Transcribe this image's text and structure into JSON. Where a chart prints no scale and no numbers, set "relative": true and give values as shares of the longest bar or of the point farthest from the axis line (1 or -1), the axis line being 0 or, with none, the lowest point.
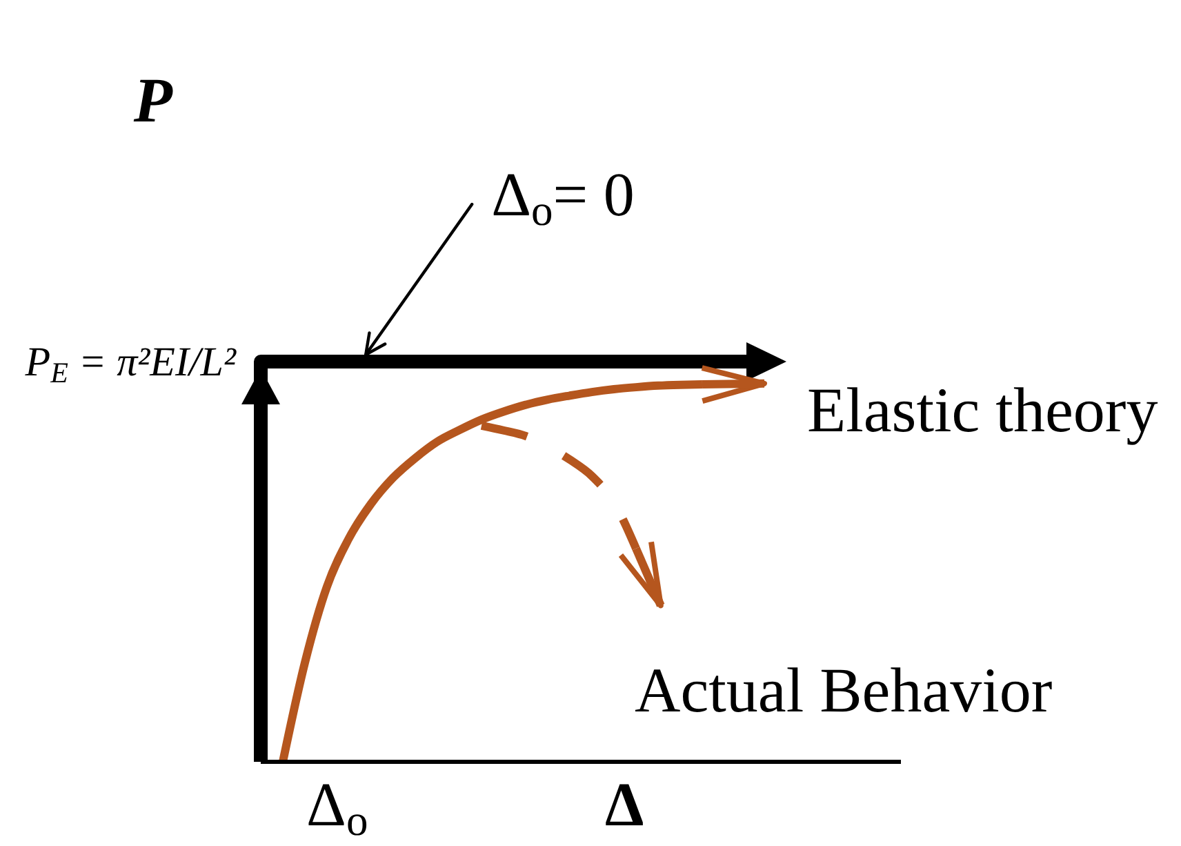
{
  "chart_data": {
    "type": "line",
    "relative": true,
    "xlabel": "Δ",
    "ylabel": "P",
    "categories": [
      null,
      null,
      null,
      null,
      null,
      null,
      null,
      null,
      null,
      null,
      null,
      null,
      null,
      null,
      null,
      null,
      null,
      null,
      null,
      null,
      null,
      null,
      null,
      null,
      null,
      null,
      null,
      null,
      null,
      null
    ],
    "annotations": [
      "P$_{E}$ = π²EI/L²",
      "Δ$_{o}$= 0",
      "Δ$_{o}$"
    ],
    "series": [
      {
        "type": "step",
        "color": "#000000",
        "values": [
          0,
          1,
          1,
          1,
          1,
          1,
          1,
          1,
          1,
          1,
          1,
          1,
          1,
          1,
          1,
          1,
          1,
          1,
          1,
          1,
          1,
          1,
          1,
          null,
          null,
          null,
          null,
          null,
          null,
          null
        ]
      },
      {
        "name": "Elastic theory",
        "color": "#b5561e",
        "values": [
          null,
          0,
          0.248,
          0.438,
          0.559,
          0.645,
          0.71,
          0.759,
          0.8,
          0.829,
          0.855,
          0.875,
          0.892,
          0.905,
          0.915,
          0.924,
          0.931,
          0.936,
          0.94,
          0.942,
          0.943,
          null,
          null,
          null,
          null,
          null,
          null,
          null,
          null,
          null
        ]
      },
      {
        "name": "Actual Behavior",
        "color": "#b5561e",
        "line_style": "dashed",
        "values": [
          null,
          null,
          null,
          null,
          null,
          null,
          null,
          null,
          null,
          null,
          0.84,
          0.828,
          0.814,
          0.788,
          0.755,
          0.714,
          0.648,
          0.533,
          null,
          null,
          null,
          null,
          null,
          null,
          null,
          null,
          null,
          null,
          null,
          null
        ]
      }
    ]
  }
}
